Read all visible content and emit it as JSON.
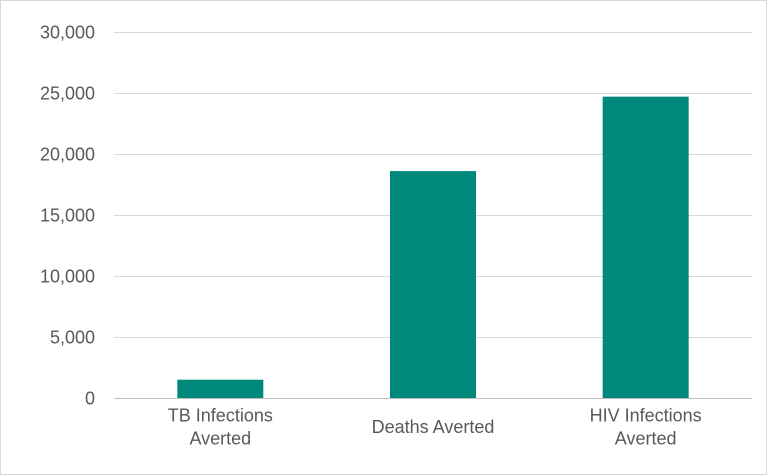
{
  "chart_data": {
    "type": "bar",
    "categories": [
      "TB Infections Averted",
      "Deaths Averted",
      "HIV Infections Averted"
    ],
    "category_label_lines": [
      [
        "TB Infections",
        "Averted"
      ],
      [
        "Deaths Averted"
      ],
      [
        "HIV Infections",
        "Averted"
      ]
    ],
    "values": [
      1500,
      18600,
      24700
    ],
    "ylim": [
      0,
      30000
    ],
    "yticks": [
      0,
      5000,
      10000,
      15000,
      20000,
      25000,
      30000
    ],
    "ytick_labels": [
      "0",
      "5,000",
      "10,000",
      "15,000",
      "20,000",
      "25,000",
      "30,000"
    ],
    "title": "",
    "xlabel": "",
    "ylabel": "",
    "grid": true,
    "legend": "none",
    "bar_color": "#00897b"
  }
}
